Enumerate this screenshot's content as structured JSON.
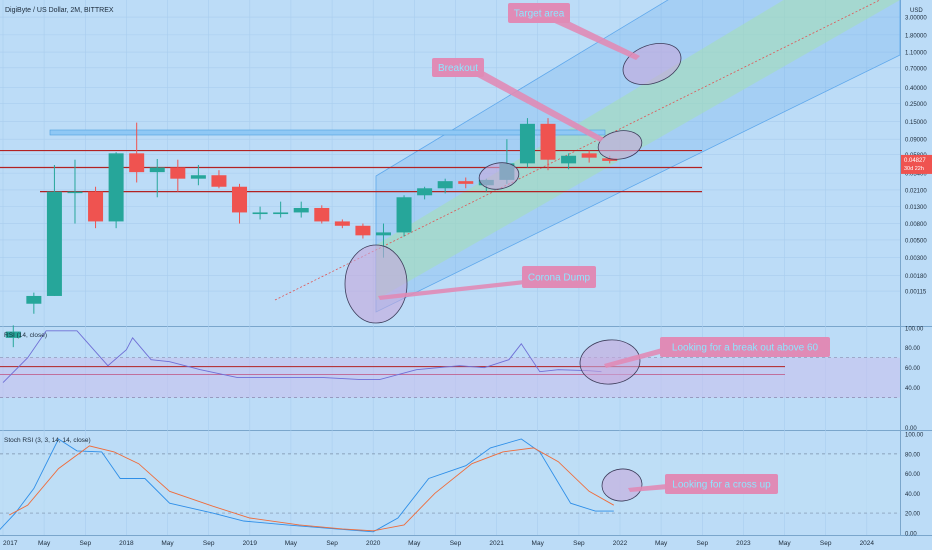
{
  "header": {
    "symbol_title": "DigiByte / US Dollar, 2M, BITTREX"
  },
  "price_axis": {
    "unit": "USD",
    "ticks": [
      "3.00000",
      "1.80000",
      "1.10000",
      "0.70000",
      "0.40000",
      "0.25000",
      "0.15000",
      "0.09000",
      "0.05800",
      "0.03400",
      "0.02100",
      "0.01300",
      "0.00800",
      "0.00500",
      "0.00300",
      "0.00180",
      "0.00115"
    ],
    "current_price_label": "0.04827",
    "countdown_label": "30d 22h"
  },
  "time_axis": {
    "labels": [
      "2017",
      "May",
      "Sep",
      "2018",
      "May",
      "Sep",
      "2019",
      "May",
      "Sep",
      "2020",
      "May",
      "Sep",
      "2021",
      "May",
      "Sep",
      "2022",
      "May",
      "Sep",
      "2023",
      "May",
      "Sep",
      "2024"
    ]
  },
  "rsi_panel": {
    "title": "RSI (14, close)",
    "ticks": [
      "100.00",
      "80.00",
      "60.00",
      "40.00",
      "0.00"
    ]
  },
  "stoch_panel": {
    "title": "Stoch RSI (3, 3, 14, 14, close)",
    "ticks": [
      "100.00",
      "80.00",
      "60.00",
      "40.00",
      "20.00",
      "0.00"
    ]
  },
  "annotations": {
    "target_area": "Target area",
    "breakout": "Breakout",
    "corona_dump": "Corona Dump",
    "rsi_note": "Looking for a break out above 60",
    "stoch_note": "Looking for a cross up"
  },
  "colors": {
    "background": "#bcdcf7",
    "bull": "#26a69a",
    "bear": "#ef5350",
    "resistance": "#b22222",
    "callout_fill": "#e08bb6",
    "callout_text": "#8ee6ff",
    "channel_blue": "#5fa8ec",
    "channel_green": "#a6e0b3",
    "rsi_line": "#6f6fd6",
    "stoch_k": "#2f8fe8",
    "stoch_d": "#ef6c3b",
    "price_tag": "#ef5350"
  },
  "chart_data": {
    "type": "candlestick",
    "interval": "2M",
    "y_scale": "log",
    "candles": [
      {
        "t": "2017-01",
        "o": 0.0003,
        "h": 0.00043,
        "l": 0.00023,
        "c": 0.00036
      },
      {
        "t": "2017-03",
        "o": 0.0008,
        "h": 0.0011,
        "l": 0.0006,
        "c": 0.001
      },
      {
        "t": "2017-05",
        "o": 0.001,
        "h": 0.043,
        "l": 0.001,
        "c": 0.02
      },
      {
        "t": "2017-07",
        "o": 0.02,
        "h": 0.05,
        "l": 0.008,
        "c": 0.02
      },
      {
        "t": "2017-09",
        "o": 0.02,
        "h": 0.023,
        "l": 0.007,
        "c": 0.0085
      },
      {
        "t": "2017-11",
        "o": 0.0085,
        "h": 0.062,
        "l": 0.007,
        "c": 0.06
      },
      {
        "t": "2018-01",
        "o": 0.06,
        "h": 0.145,
        "l": 0.026,
        "c": 0.035
      },
      {
        "t": "2018-03",
        "o": 0.035,
        "h": 0.051,
        "l": 0.017,
        "c": 0.04
      },
      {
        "t": "2018-05",
        "o": 0.04,
        "h": 0.05,
        "l": 0.02,
        "c": 0.029
      },
      {
        "t": "2018-07",
        "o": 0.029,
        "h": 0.043,
        "l": 0.024,
        "c": 0.032
      },
      {
        "t": "2018-09",
        "o": 0.032,
        "h": 0.037,
        "l": 0.022,
        "c": 0.023
      },
      {
        "t": "2018-11",
        "o": 0.023,
        "h": 0.025,
        "l": 0.008,
        "c": 0.011
      },
      {
        "t": "2019-01",
        "o": 0.0105,
        "h": 0.013,
        "l": 0.009,
        "c": 0.011
      },
      {
        "t": "2019-03",
        "o": 0.0105,
        "h": 0.015,
        "l": 0.0095,
        "c": 0.011
      },
      {
        "t": "2019-05",
        "o": 0.011,
        "h": 0.015,
        "l": 0.0095,
        "c": 0.0125
      },
      {
        "t": "2019-07",
        "o": 0.0125,
        "h": 0.0135,
        "l": 0.008,
        "c": 0.0085
      },
      {
        "t": "2019-09",
        "o": 0.0085,
        "h": 0.009,
        "l": 0.007,
        "c": 0.0075
      },
      {
        "t": "2019-11",
        "o": 0.0075,
        "h": 0.008,
        "l": 0.0052,
        "c": 0.0057
      },
      {
        "t": "2020-01",
        "o": 0.0057,
        "h": 0.008,
        "l": 0.003,
        "c": 0.0062
      },
      {
        "t": "2020-03",
        "o": 0.0062,
        "h": 0.018,
        "l": 0.0055,
        "c": 0.017
      },
      {
        "t": "2020-05",
        "o": 0.018,
        "h": 0.023,
        "l": 0.016,
        "c": 0.022
      },
      {
        "t": "2020-07",
        "o": 0.022,
        "h": 0.029,
        "l": 0.019,
        "c": 0.027
      },
      {
        "t": "2020-09",
        "o": 0.027,
        "h": 0.03,
        "l": 0.022,
        "c": 0.025
      },
      {
        "t": "2020-11",
        "o": 0.024,
        "h": 0.029,
        "l": 0.02,
        "c": 0.028
      },
      {
        "t": "2021-01",
        "o": 0.028,
        "h": 0.09,
        "l": 0.025,
        "c": 0.045
      },
      {
        "t": "2021-03",
        "o": 0.045,
        "h": 0.165,
        "l": 0.04,
        "c": 0.14
      },
      {
        "t": "2021-05",
        "o": 0.14,
        "h": 0.165,
        "l": 0.037,
        "c": 0.05
      },
      {
        "t": "2021-07",
        "o": 0.045,
        "h": 0.06,
        "l": 0.038,
        "c": 0.056
      },
      {
        "t": "2021-09",
        "o": 0.06,
        "h": 0.065,
        "l": 0.046,
        "c": 0.053
      },
      {
        "t": "2021-11",
        "o": 0.052,
        "h": 0.056,
        "l": 0.045,
        "c": 0.04827
      }
    ],
    "resistance_lines": [
      0.065,
      0.04,
      0.02
    ],
    "rsi_series": [
      [
        2017.0,
        45
      ],
      [
        2017.2,
        70
      ],
      [
        2017.35,
        97
      ],
      [
        2017.6,
        97
      ],
      [
        2017.85,
        62
      ],
      [
        2018.0,
        78
      ],
      [
        2018.05,
        90
      ],
      [
        2018.2,
        68
      ],
      [
        2018.35,
        66
      ],
      [
        2018.6,
        58
      ],
      [
        2018.9,
        50
      ],
      [
        2019.2,
        50
      ],
      [
        2019.6,
        50
      ],
      [
        2019.9,
        48
      ],
      [
        2020.05,
        48
      ],
      [
        2020.35,
        58
      ],
      [
        2020.7,
        62
      ],
      [
        2020.9,
        60
      ],
      [
        2021.1,
        68
      ],
      [
        2021.2,
        84
      ],
      [
        2021.35,
        56
      ],
      [
        2021.5,
        58
      ],
      [
        2021.75,
        57
      ],
      [
        2021.85,
        56
      ]
    ],
    "stoch_k": [
      [
        2016.95,
        0
      ],
      [
        2017.1,
        20
      ],
      [
        2017.25,
        45
      ],
      [
        2017.45,
        95
      ],
      [
        2017.6,
        83
      ],
      [
        2017.8,
        82
      ],
      [
        2017.95,
        55
      ],
      [
        2018.15,
        55
      ],
      [
        2018.35,
        30
      ],
      [
        2018.7,
        20
      ],
      [
        2018.95,
        12
      ],
      [
        2019.3,
        8
      ],
      [
        2019.7,
        4
      ],
      [
        2020.0,
        1
      ],
      [
        2020.2,
        15
      ],
      [
        2020.45,
        55
      ],
      [
        2020.75,
        68
      ],
      [
        2020.95,
        86
      ],
      [
        2021.2,
        95
      ],
      [
        2021.35,
        82
      ],
      [
        2021.6,
        30
      ],
      [
        2021.8,
        22
      ],
      [
        2021.95,
        22
      ]
    ],
    "stoch_d": [
      [
        2017.05,
        18
      ],
      [
        2017.2,
        28
      ],
      [
        2017.45,
        65
      ],
      [
        2017.7,
        88
      ],
      [
        2017.9,
        82
      ],
      [
        2018.1,
        70
      ],
      [
        2018.35,
        42
      ],
      [
        2018.7,
        27
      ],
      [
        2019.0,
        15
      ],
      [
        2019.4,
        8
      ],
      [
        2019.75,
        4
      ],
      [
        2020.0,
        2
      ],
      [
        2020.25,
        8
      ],
      [
        2020.5,
        40
      ],
      [
        2020.8,
        70
      ],
      [
        2021.05,
        82
      ],
      [
        2021.3,
        86
      ],
      [
        2021.5,
        72
      ],
      [
        2021.75,
        42
      ],
      [
        2021.95,
        28
      ]
    ]
  }
}
